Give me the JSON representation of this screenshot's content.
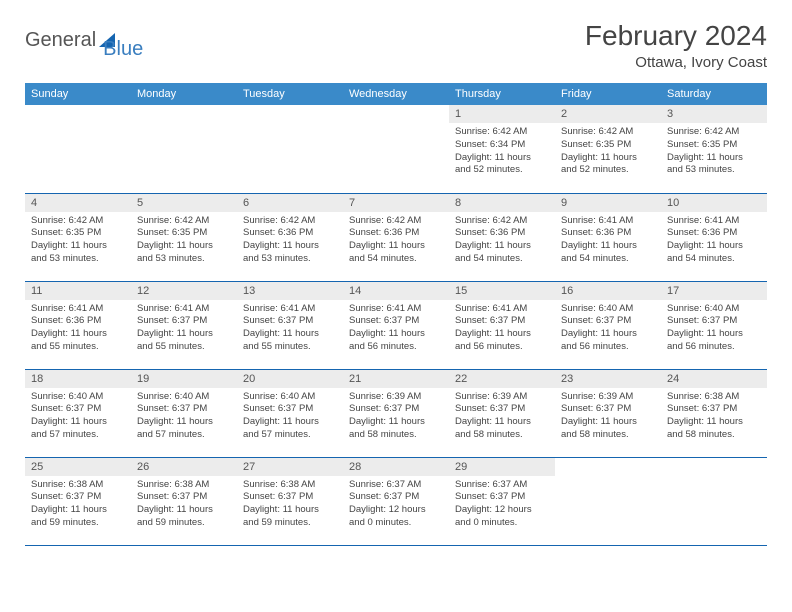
{
  "logo": {
    "word1": "General",
    "word2": "Blue"
  },
  "title": "February 2024",
  "location": "Ottawa, Ivory Coast",
  "colors": {
    "header_bg": "#3a8ac9",
    "header_text": "#ffffff",
    "cell_border": "#1565b0",
    "daynum_bg": "#ececec",
    "logo_blue": "#3a7ebf",
    "logo_gray": "#555555"
  },
  "weekdays": [
    "Sunday",
    "Monday",
    "Tuesday",
    "Wednesday",
    "Thursday",
    "Friday",
    "Saturday"
  ],
  "weeks": [
    [
      {
        "num": "",
        "sunrise": "",
        "sunset": "",
        "daylight": ""
      },
      {
        "num": "",
        "sunrise": "",
        "sunset": "",
        "daylight": ""
      },
      {
        "num": "",
        "sunrise": "",
        "sunset": "",
        "daylight": ""
      },
      {
        "num": "",
        "sunrise": "",
        "sunset": "",
        "daylight": ""
      },
      {
        "num": "1",
        "sunrise": "Sunrise: 6:42 AM",
        "sunset": "Sunset: 6:34 PM",
        "daylight": "Daylight: 11 hours and 52 minutes."
      },
      {
        "num": "2",
        "sunrise": "Sunrise: 6:42 AM",
        "sunset": "Sunset: 6:35 PM",
        "daylight": "Daylight: 11 hours and 52 minutes."
      },
      {
        "num": "3",
        "sunrise": "Sunrise: 6:42 AM",
        "sunset": "Sunset: 6:35 PM",
        "daylight": "Daylight: 11 hours and 53 minutes."
      }
    ],
    [
      {
        "num": "4",
        "sunrise": "Sunrise: 6:42 AM",
        "sunset": "Sunset: 6:35 PM",
        "daylight": "Daylight: 11 hours and 53 minutes."
      },
      {
        "num": "5",
        "sunrise": "Sunrise: 6:42 AM",
        "sunset": "Sunset: 6:35 PM",
        "daylight": "Daylight: 11 hours and 53 minutes."
      },
      {
        "num": "6",
        "sunrise": "Sunrise: 6:42 AM",
        "sunset": "Sunset: 6:36 PM",
        "daylight": "Daylight: 11 hours and 53 minutes."
      },
      {
        "num": "7",
        "sunrise": "Sunrise: 6:42 AM",
        "sunset": "Sunset: 6:36 PM",
        "daylight": "Daylight: 11 hours and 54 minutes."
      },
      {
        "num": "8",
        "sunrise": "Sunrise: 6:42 AM",
        "sunset": "Sunset: 6:36 PM",
        "daylight": "Daylight: 11 hours and 54 minutes."
      },
      {
        "num": "9",
        "sunrise": "Sunrise: 6:41 AM",
        "sunset": "Sunset: 6:36 PM",
        "daylight": "Daylight: 11 hours and 54 minutes."
      },
      {
        "num": "10",
        "sunrise": "Sunrise: 6:41 AM",
        "sunset": "Sunset: 6:36 PM",
        "daylight": "Daylight: 11 hours and 54 minutes."
      }
    ],
    [
      {
        "num": "11",
        "sunrise": "Sunrise: 6:41 AM",
        "sunset": "Sunset: 6:36 PM",
        "daylight": "Daylight: 11 hours and 55 minutes."
      },
      {
        "num": "12",
        "sunrise": "Sunrise: 6:41 AM",
        "sunset": "Sunset: 6:37 PM",
        "daylight": "Daylight: 11 hours and 55 minutes."
      },
      {
        "num": "13",
        "sunrise": "Sunrise: 6:41 AM",
        "sunset": "Sunset: 6:37 PM",
        "daylight": "Daylight: 11 hours and 55 minutes."
      },
      {
        "num": "14",
        "sunrise": "Sunrise: 6:41 AM",
        "sunset": "Sunset: 6:37 PM",
        "daylight": "Daylight: 11 hours and 56 minutes."
      },
      {
        "num": "15",
        "sunrise": "Sunrise: 6:41 AM",
        "sunset": "Sunset: 6:37 PM",
        "daylight": "Daylight: 11 hours and 56 minutes."
      },
      {
        "num": "16",
        "sunrise": "Sunrise: 6:40 AM",
        "sunset": "Sunset: 6:37 PM",
        "daylight": "Daylight: 11 hours and 56 minutes."
      },
      {
        "num": "17",
        "sunrise": "Sunrise: 6:40 AM",
        "sunset": "Sunset: 6:37 PM",
        "daylight": "Daylight: 11 hours and 56 minutes."
      }
    ],
    [
      {
        "num": "18",
        "sunrise": "Sunrise: 6:40 AM",
        "sunset": "Sunset: 6:37 PM",
        "daylight": "Daylight: 11 hours and 57 minutes."
      },
      {
        "num": "19",
        "sunrise": "Sunrise: 6:40 AM",
        "sunset": "Sunset: 6:37 PM",
        "daylight": "Daylight: 11 hours and 57 minutes."
      },
      {
        "num": "20",
        "sunrise": "Sunrise: 6:40 AM",
        "sunset": "Sunset: 6:37 PM",
        "daylight": "Daylight: 11 hours and 57 minutes."
      },
      {
        "num": "21",
        "sunrise": "Sunrise: 6:39 AM",
        "sunset": "Sunset: 6:37 PM",
        "daylight": "Daylight: 11 hours and 58 minutes."
      },
      {
        "num": "22",
        "sunrise": "Sunrise: 6:39 AM",
        "sunset": "Sunset: 6:37 PM",
        "daylight": "Daylight: 11 hours and 58 minutes."
      },
      {
        "num": "23",
        "sunrise": "Sunrise: 6:39 AM",
        "sunset": "Sunset: 6:37 PM",
        "daylight": "Daylight: 11 hours and 58 minutes."
      },
      {
        "num": "24",
        "sunrise": "Sunrise: 6:38 AM",
        "sunset": "Sunset: 6:37 PM",
        "daylight": "Daylight: 11 hours and 58 minutes."
      }
    ],
    [
      {
        "num": "25",
        "sunrise": "Sunrise: 6:38 AM",
        "sunset": "Sunset: 6:37 PM",
        "daylight": "Daylight: 11 hours and 59 minutes."
      },
      {
        "num": "26",
        "sunrise": "Sunrise: 6:38 AM",
        "sunset": "Sunset: 6:37 PM",
        "daylight": "Daylight: 11 hours and 59 minutes."
      },
      {
        "num": "27",
        "sunrise": "Sunrise: 6:38 AM",
        "sunset": "Sunset: 6:37 PM",
        "daylight": "Daylight: 11 hours and 59 minutes."
      },
      {
        "num": "28",
        "sunrise": "Sunrise: 6:37 AM",
        "sunset": "Sunset: 6:37 PM",
        "daylight": "Daylight: 12 hours and 0 minutes."
      },
      {
        "num": "29",
        "sunrise": "Sunrise: 6:37 AM",
        "sunset": "Sunset: 6:37 PM",
        "daylight": "Daylight: 12 hours and 0 minutes."
      },
      {
        "num": "",
        "sunrise": "",
        "sunset": "",
        "daylight": ""
      },
      {
        "num": "",
        "sunrise": "",
        "sunset": "",
        "daylight": ""
      }
    ]
  ]
}
